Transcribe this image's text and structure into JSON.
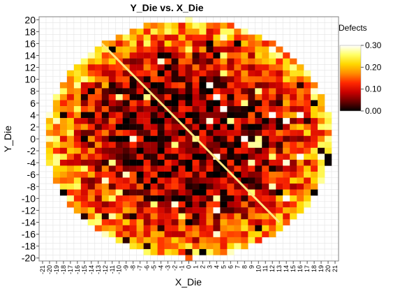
{
  "chart_data": {
    "type": "heatmap",
    "title": "Y_Die vs. X_Die",
    "xlabel": "X_Die",
    "ylabel": "Y_Die",
    "xlim": [
      -21,
      21
    ],
    "ylim": [
      -20,
      20
    ],
    "x_ticks": [
      "-21",
      "-20",
      "-19",
      "-18",
      "-17",
      "-16",
      "-15",
      "-14",
      "-13",
      "-12",
      "-11",
      "-10",
      "-9",
      "-8",
      "-7",
      "-6",
      "-5",
      "-4",
      "-3",
      "-2",
      "-1",
      "0",
      "1",
      "2",
      "3",
      "4",
      "5",
      "6",
      "7",
      "8",
      "9",
      "10",
      "11",
      "12",
      "13",
      "14",
      "15",
      "16",
      "17",
      "18",
      "19",
      "20",
      "21"
    ],
    "y_ticks": [
      "20",
      "18",
      "16",
      "14",
      "12",
      "10",
      "8",
      "6",
      "4",
      "2",
      "0",
      "-2",
      "-4",
      "-6",
      "-8",
      "-10",
      "-12",
      "-14",
      "-16",
      "-18",
      "-20"
    ],
    "grid": true,
    "legend": {
      "title": "Defects",
      "position": "right",
      "ticks": [
        "0.30",
        "0.20",
        "0.10",
        "0.00"
      ],
      "min": 0.0,
      "max": 0.3,
      "colormap": [
        "#000000",
        "#6a0000",
        "#c80000",
        "#ff2800",
        "#ff8c00",
        "#ffd700",
        "#ffff66",
        "#ffffff"
      ]
    },
    "wafer_radius_die": 20.6,
    "defect_rate_model": {
      "center": 0.05,
      "edge": 0.22,
      "noise": 0.08
    },
    "overlay_line": {
      "color": "#ffe680",
      "from": [
        -12.5,
        16
      ],
      "to": [
        13,
        -14
      ]
    }
  }
}
